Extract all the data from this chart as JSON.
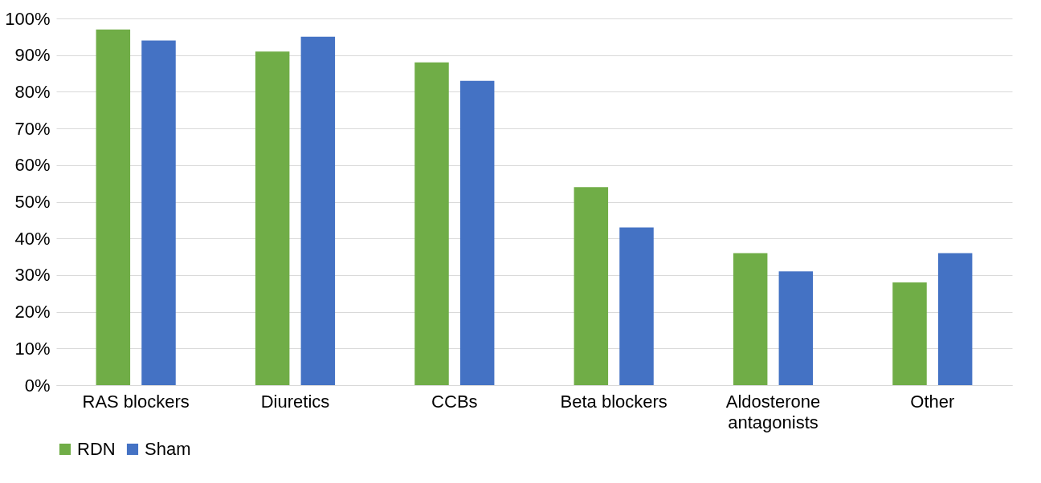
{
  "chart_data": {
    "type": "bar",
    "categories": [
      "RAS blockers",
      "Diuretics",
      "CCBs",
      "Beta blockers",
      "Aldosterone antagonists",
      "Other"
    ],
    "series": [
      {
        "name": "RDN",
        "color": "#70ad47",
        "values": [
          97,
          91,
          88,
          54,
          36,
          28
        ]
      },
      {
        "name": "Sham",
        "color": "#4472c4",
        "values": [
          94,
          95,
          83,
          43,
          31,
          36
        ]
      }
    ],
    "ylim": [
      0,
      100
    ],
    "yticks": [
      {
        "value": 0,
        "label": "0%"
      },
      {
        "value": 10,
        "label": "10%"
      },
      {
        "value": 20,
        "label": "20%"
      },
      {
        "value": 30,
        "label": "30%"
      },
      {
        "value": 40,
        "label": "40%"
      },
      {
        "value": 50,
        "label": "50%"
      },
      {
        "value": 60,
        "label": "60%"
      },
      {
        "value": 70,
        "label": "70%"
      },
      {
        "value": 80,
        "label": "80%"
      },
      {
        "value": 90,
        "label": "90%"
      },
      {
        "value": 100,
        "label": "100%"
      }
    ],
    "grid": "y",
    "legend": "bottom"
  }
}
